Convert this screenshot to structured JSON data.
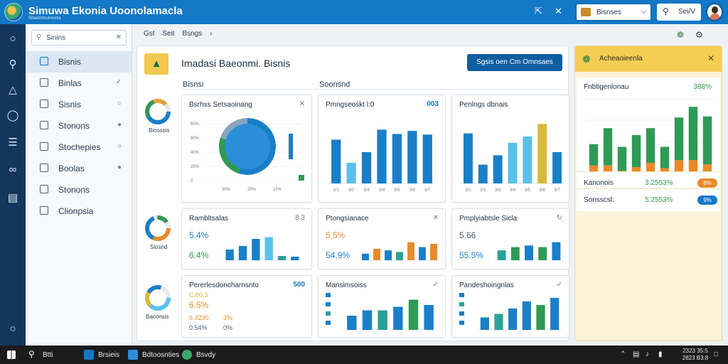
{
  "app": {
    "title": "Simuwa Ekonia  Uoonolamacla",
    "subtitle": "Sitaetintsunsonia",
    "workspace": "Bisnses",
    "search_label": "Sei/V"
  },
  "rail": {
    "icons": [
      "circle-icon",
      "search-icon",
      "bell-icon",
      "chat-icon",
      "library-icon",
      "share-icon",
      "window-icon",
      "settings-icon"
    ]
  },
  "nav": {
    "search_placeholder": "Sinins",
    "items": [
      {
        "label": "Bisnis",
        "end": "",
        "active": true
      },
      {
        "label": "Binlas",
        "end": "✓",
        "active": false
      },
      {
        "label": "Sisnis",
        "end": "○",
        "active": false
      },
      {
        "label": "Stonons",
        "end": "●",
        "active": false
      },
      {
        "label": "Stochepies",
        "end": "○",
        "active": false
      },
      {
        "label": "Boolas",
        "end": "●",
        "active": false
      },
      {
        "label": "Stonons",
        "end": "",
        "active": false
      },
      {
        "label": "Clionpsia",
        "end": "",
        "active": false
      }
    ]
  },
  "breadcrumb": [
    "Gst",
    "Seit",
    "Bsngs"
  ],
  "main": {
    "title": "Imadasi Baeonmi. Bisnis",
    "action_button": "Sgsis oen Cm Omnsaes",
    "sections": [
      "Bisnsi",
      "Soonsnd"
    ],
    "mini_labels": [
      "Bicossis",
      "Siosnd",
      "Baconsis"
    ]
  },
  "cards": {
    "c1": {
      "title": "Bsrhss Setsaoinang",
      "act": "✕"
    },
    "c2": {
      "title": "Pmngseoskt l:0",
      "act": "003"
    },
    "c3": {
      "title": "Penlngs dbnais",
      "act": ""
    },
    "c4": {
      "title": "Rambltsalas",
      "act": "8.3",
      "kpi1": "5.4%",
      "kpi2": "6.4%"
    },
    "c5": {
      "title": "Ptongsianace",
      "act": "✕",
      "kpi1": "5.5%",
      "kpi2": "54.9%"
    },
    "c6": {
      "title": "Pmplyiabtsle Sicla",
      "act": "↻",
      "kpi1": "5.66",
      "kpi2": "55.5%"
    },
    "c7": {
      "title": "Pererlesdoncharnsnto",
      "act": "500",
      "kpi0": "C.80.3",
      "kpi1": "6.5%",
      "kpi2": "6.3230",
      "kpi2b": "3%",
      "kpi3": "0.54%",
      "kpi3b": "0%"
    },
    "c8": {
      "title": "Mansimsoiss",
      "act": "✓"
    },
    "c9": {
      "title": "Pandeshoingnlas",
      "act": "✓"
    }
  },
  "right_panel": {
    "title": "Acheaoieenla",
    "chart_title": "Fnbtigenlonau",
    "chart_value": "388%",
    "rows": [
      {
        "label": "Kanonois",
        "value": "3.2553%",
        "pill": "8%",
        "pill_color": "#e88a2a"
      },
      {
        "label": "Sonsscsl:",
        "value": "5.2553%",
        "pill": "9%",
        "pill_color": "#1378c6"
      }
    ]
  },
  "taskbar": {
    "search": "Btti",
    "apps": [
      "Brsieis",
      "Bdtoosnties",
      "Bsvdy"
    ],
    "clock_time": "2323 35:5",
    "clock_date": "2823 B3:8"
  },
  "colors": {
    "brand": "#1378c6",
    "blue": "#1a7fc8",
    "light_blue": "#5bc0eb",
    "green": "#2f9a55",
    "orange": "#e88a2a",
    "yellow": "#d9b93a",
    "teal": "#2aa198"
  },
  "chart_data": [
    {
      "id": "c1",
      "type": "pie",
      "title": "Bsrhss Setsaoinang",
      "y_ticks": [
        "80%",
        "60%",
        "40%",
        "20%",
        "0"
      ],
      "x_ticks": [
        "30%",
        "25%",
        "15%"
      ],
      "slices": [
        {
          "value": 55,
          "color": "#1a7fc8"
        },
        {
          "value": 25,
          "color": "#2f9a55"
        },
        {
          "value": 20,
          "color": "#8aa4bd"
        }
      ]
    },
    {
      "id": "c2",
      "type": "bar",
      "title": "Pmngseoskt l:0",
      "categories": [
        "3/1",
        "3/2",
        "3/3",
        "3/4",
        "3/5",
        "3/6",
        "3/7"
      ],
      "values": [
        70,
        33,
        50,
        86,
        79,
        84,
        78
      ],
      "colors": [
        "#1a7fc8",
        "#5bc0eb",
        "#1a7fc8",
        "#1a7fc8",
        "#1a7fc8",
        "#1a7fc8",
        "#1a7fc8"
      ]
    },
    {
      "id": "c3",
      "type": "bar",
      "title": "Penlngs dbnais",
      "categories": [
        "3/1",
        "3/2",
        "3/3",
        "3/4",
        "3/5",
        "3/6",
        "3/7"
      ],
      "values": [
        80,
        30,
        45,
        65,
        75,
        95,
        50
      ],
      "colors": [
        "#1a7fc8",
        "#1a7fc8",
        "#1a7fc8",
        "#5bc0eb",
        "#5bc0eb",
        "#d9b93a",
        "#1a7fc8"
      ]
    },
    {
      "id": "c4",
      "type": "bar",
      "values": [
        30,
        40,
        60,
        65,
        12,
        10
      ],
      "colors": [
        "#1a7fc8",
        "#1a7fc8",
        "#1a7fc8",
        "#5bc0eb",
        "#2aa198",
        "#1a7fc8"
      ]
    },
    {
      "id": "c5",
      "type": "bar",
      "values": [
        20,
        35,
        30,
        25,
        55,
        40,
        50
      ],
      "colors": [
        "#1a7fc8",
        "#e88a2a",
        "#1a7fc8",
        "#2aa198",
        "#e88a2a",
        "#1a7fc8",
        "#e88a2a"
      ]
    },
    {
      "id": "c6",
      "type": "bar",
      "values": [
        30,
        40,
        45,
        40,
        55
      ],
      "colors": [
        "#2aa198",
        "#2f9a55",
        "#1a7fc8",
        "#2f9a55",
        "#1a7fc8"
      ]
    },
    {
      "id": "c8",
      "type": "bar",
      "values": [
        40,
        55,
        55,
        65,
        85,
        70
      ],
      "colors": [
        "#1a7fc8",
        "#1a7fc8",
        "#2aa198",
        "#1a7fc8",
        "#2f9a55",
        "#1a7fc8"
      ]
    },
    {
      "id": "c9",
      "type": "bar",
      "values": [
        35,
        45,
        60,
        80,
        70,
        90
      ],
      "colors": [
        "#1a7fc8",
        "#2aa198",
        "#1a7fc8",
        "#1a7fc8",
        "#2f9a55",
        "#1a7fc8"
      ]
    },
    {
      "id": "rp",
      "type": "bar",
      "title": "Fnbtigenlonau",
      "series": [
        {
          "values": [
            40,
            70,
            45,
            60,
            65,
            40,
            80,
            100,
            90
          ],
          "color": "#2f9a55"
        },
        {
          "values": [
            20,
            25,
            15,
            20,
            25,
            20,
            30,
            30,
            25
          ],
          "color": "#e88a2a"
        },
        {
          "values": [
            15,
            10,
            10,
            12,
            15,
            10,
            15,
            15,
            12
          ],
          "color": "#1a7fc8"
        }
      ]
    }
  ]
}
